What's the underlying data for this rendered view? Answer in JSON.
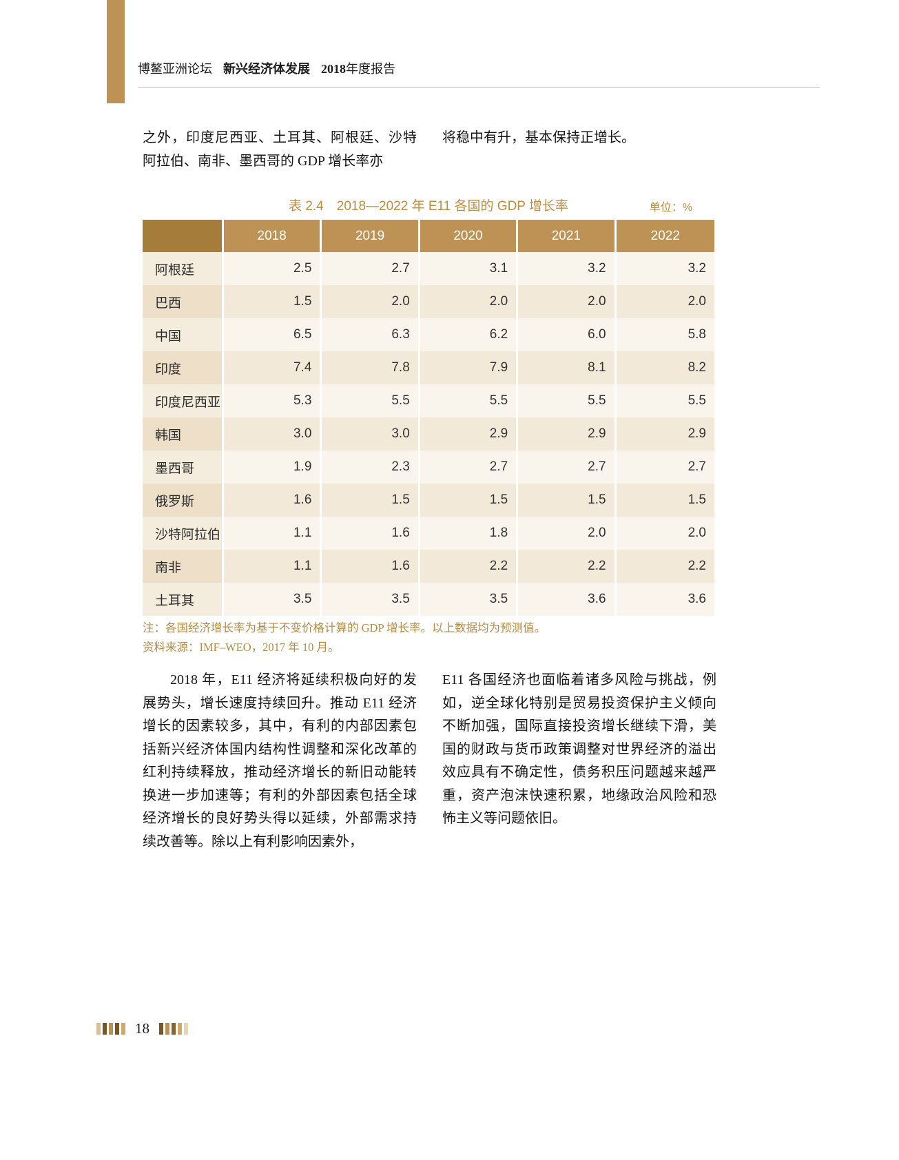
{
  "colors": {
    "accent_gold": "#be9254",
    "header_cell": "#be9254",
    "header_cell_dark": "#a67c3b",
    "row_light_label": "#f4ecdd",
    "row_light_value": "#faf5ec",
    "row_dark_label": "#eedfc8",
    "row_dark_value": "#f3e9d8",
    "title_gold": "#c18c3c",
    "note_gold": "#b98a42"
  },
  "header": {
    "brand": "博鳌亚洲论坛",
    "series": "新兴经济体发展",
    "report_year": "2018",
    "report_suffix": "年度报告"
  },
  "intro": {
    "left_column": "之外，印度尼西亚、土耳其、阿根廷、沙特阿拉伯、南非、墨西哥的 GDP 增长率亦",
    "right_column": "将稳中有升，基本保持正增长。"
  },
  "table": {
    "caption": "表 2.4　2018—2022 年 E11 各国的 GDP 增长率",
    "unit": "单位：%",
    "columns": [
      "2018",
      "2019",
      "2020",
      "2021",
      "2022"
    ],
    "rows": [
      {
        "country": "阿根廷",
        "values": [
          "2.5",
          "2.7",
          "3.1",
          "3.2",
          "3.2"
        ]
      },
      {
        "country": "巴西",
        "values": [
          "1.5",
          "2.0",
          "2.0",
          "2.0",
          "2.0"
        ]
      },
      {
        "country": "中国",
        "values": [
          "6.5",
          "6.3",
          "6.2",
          "6.0",
          "5.8"
        ]
      },
      {
        "country": "印度",
        "values": [
          "7.4",
          "7.8",
          "7.9",
          "8.1",
          "8.2"
        ]
      },
      {
        "country": "印度尼西亚",
        "values": [
          "5.3",
          "5.5",
          "5.5",
          "5.5",
          "5.5"
        ]
      },
      {
        "country": "韩国",
        "values": [
          "3.0",
          "3.0",
          "2.9",
          "2.9",
          "2.9"
        ]
      },
      {
        "country": "墨西哥",
        "values": [
          "1.9",
          "2.3",
          "2.7",
          "2.7",
          "2.7"
        ]
      },
      {
        "country": "俄罗斯",
        "values": [
          "1.6",
          "1.5",
          "1.5",
          "1.5",
          "1.5"
        ]
      },
      {
        "country": "沙特阿拉伯",
        "values": [
          "1.1",
          "1.6",
          "1.8",
          "2.0",
          "2.0"
        ]
      },
      {
        "country": "南非",
        "values": [
          "1.1",
          "1.6",
          "2.2",
          "2.2",
          "2.2"
        ]
      },
      {
        "country": "土耳其",
        "values": [
          "3.5",
          "3.5",
          "3.5",
          "3.6",
          "3.6"
        ]
      }
    ],
    "note": "注：各国经济增长率为基于不变价格计算的 GDP 增长率。以上数据均为预测值。",
    "source": "资料来源：IMF–WEO，2017 年 10 月。"
  },
  "body": {
    "left_column": "2018 年，E11 经济将延续积极向好的发展势头，增长速度持续回升。推动 E11 经济增长的因素较多，其中，有利的内部因素包括新兴经济体国内结构性调整和深化改革的红利持续释放，推动经济增长的新旧动能转换进一步加速等；有利的外部因素包括全球经济增长的良好势头得以延续，外部需求持续改善等。除以上有利影响因素外，",
    "right_column": "E11 各国经济也面临着诸多风险与挑战，例如，逆全球化特别是贸易投资保护主义倾向不断加强，国际直接投资增长继续下滑，美国的财政与货币政策调整对世界经济的溢出效应具有不确定性，债务积压问题越来越严重，资产泡沫快速积累，地缘政治风险和恐怖主义等问题依旧。"
  },
  "footer": {
    "page_number": "18",
    "left_bars": [
      "#d9bf92",
      "#7c5526",
      "#bb9150",
      "#7c5526",
      "#cfa96a"
    ],
    "right_bars": [
      "#7c5526",
      "#bb9150",
      "#8a622e",
      "#cfa96a",
      "#e6d6b2"
    ]
  }
}
